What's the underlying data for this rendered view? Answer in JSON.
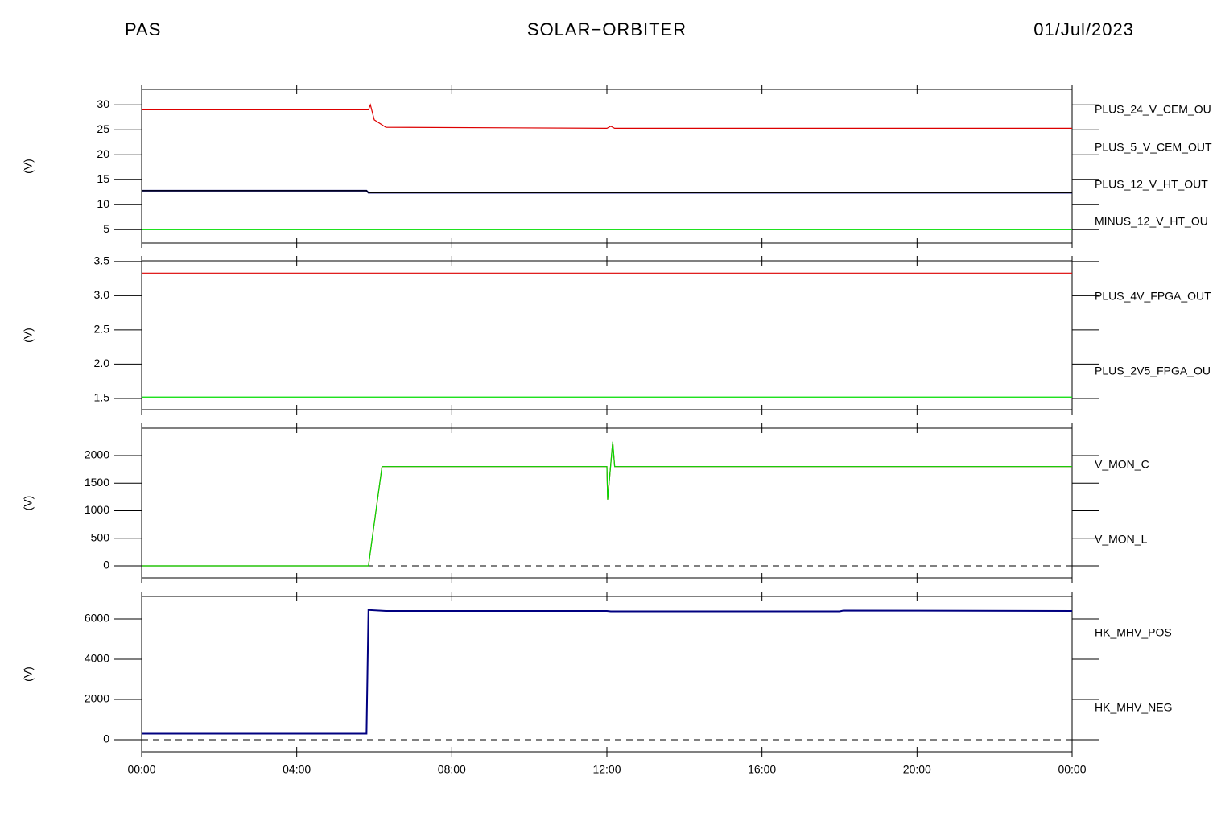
{
  "header": {
    "instrument": "PAS",
    "title": "SOLAR−ORBITER",
    "date": "01/Jul/2023"
  },
  "chart_data": [
    {
      "type": "line",
      "y_label": "(V)",
      "xlim": [
        0,
        24
      ],
      "ylim": [
        2.3,
        33.1
      ],
      "yticks": [
        5,
        10,
        15,
        20,
        25,
        30
      ],
      "x": [
        0,
        5.8,
        5.85,
        5.9,
        6.0,
        6.3,
        12.0,
        12.1,
        12.2,
        24
      ],
      "series": [
        {
          "name": "PLUS_24_V_CEM_OU",
          "color": "#dd0000",
          "values": [
            29,
            29,
            29,
            30,
            27,
            25.5,
            25.3,
            25.7,
            25.3,
            25.3
          ]
        },
        {
          "name": "PLUS_5_V_CEM_OUT",
          "color": "#00dd00",
          "values": [
            5,
            5,
            5,
            5,
            5,
            5,
            5,
            5,
            5,
            5
          ]
        },
        {
          "name": "PLUS_12_V_HT_OUT",
          "color": "#000080",
          "values": [
            12.8,
            12.8,
            12.4,
            12.4,
            12.4,
            12.4,
            12.4,
            12.4,
            12.4,
            12.4
          ]
        },
        {
          "name": "MINUS_12_V_HT_OU",
          "color": "#000000",
          "values": [
            12.8,
            12.8,
            12.4,
            12.4,
            12.4,
            12.4,
            12.4,
            12.4,
            12.4,
            12.4
          ]
        }
      ]
    },
    {
      "type": "line",
      "y_label": "(V)",
      "xlim": [
        0,
        24
      ],
      "ylim": [
        1.335,
        3.51
      ],
      "yticks": [
        {
          "value": 1.5,
          "label": "1.5"
        },
        {
          "value": 2,
          "label": "2.0"
        },
        {
          "value": 2.5,
          "label": "2.5"
        },
        {
          "value": 3,
          "label": "3.0"
        },
        {
          "value": 3.5,
          "label": "3.5"
        }
      ],
      "x": [
        0,
        24
      ],
      "series": [
        {
          "name": "PLUS_4V_FPGA_OUT",
          "color": "#dd0000",
          "values": [
            3.33,
            3.33
          ]
        },
        {
          "name": "PLUS_2V5_FPGA_OU",
          "color": "#00dd00",
          "values": [
            1.52,
            1.52
          ]
        }
      ]
    },
    {
      "type": "line",
      "y_label": "(V)",
      "xlim": [
        0,
        24
      ],
      "ylim": [
        -219,
        2496
      ],
      "yticks": [
        0,
        500,
        1000,
        1500,
        2000
      ],
      "reference_line": 0,
      "x": [
        0,
        5.85,
        6.2,
        12.0,
        12.02,
        12.15,
        12.2,
        24
      ],
      "series": [
        {
          "name": "V_MON_C",
          "color": "#dd0000",
          "values": [
            0,
            0,
            1800,
            1800,
            1200,
            2250,
            1800,
            1800
          ]
        },
        {
          "name": "V_MON_L",
          "color": "#00dd00",
          "values": [
            0,
            0,
            1800,
            1800,
            1200,
            2250,
            1800,
            1800
          ]
        }
      ]
    },
    {
      "type": "line",
      "y_label": "(V)",
      "xlim": [
        0,
        24
      ],
      "ylim": [
        -600,
        7120
      ],
      "yticks": [
        0,
        2000,
        4000,
        6000
      ],
      "reference_line": 0,
      "x": [
        0,
        5.8,
        5.85,
        6.3,
        12.0,
        12.1,
        18.0,
        18.1,
        24
      ],
      "xticks": [
        {
          "value": 0,
          "label": "00:00"
        },
        {
          "value": 4,
          "label": "04:00"
        },
        {
          "value": 8,
          "label": "08:00"
        },
        {
          "value": 12,
          "label": "12:00"
        },
        {
          "value": 16,
          "label": "16:00"
        },
        {
          "value": 20,
          "label": "20:00"
        },
        {
          "value": 24,
          "label": "00:00"
        }
      ],
      "series": [
        {
          "name": "HK_MHV_POS",
          "color": "#000000",
          "values": [
            300,
            300,
            6450,
            6400,
            6400,
            6380,
            6380,
            6420,
            6400
          ]
        },
        {
          "name": "HK_MHV_NEG",
          "color": "#000080",
          "values": [
            300,
            300,
            6450,
            6400,
            6400,
            6380,
            6380,
            6420,
            6400
          ]
        }
      ]
    }
  ]
}
